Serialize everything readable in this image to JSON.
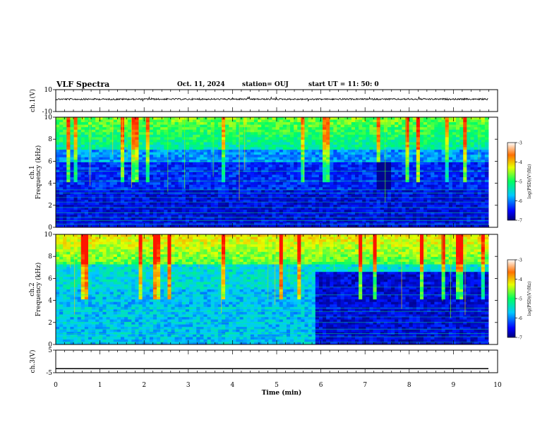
{
  "header": {
    "title": "VLF Spectra",
    "date": "Oct. 11, 2024",
    "station": "station= OUJ",
    "start": "start  UT  =   11: 50: 0"
  },
  "chart_data": [
    {
      "type": "line",
      "panel": "ch1-waveform",
      "ylabel": "ch.1(V)",
      "ylim": [
        -10,
        10
      ],
      "yticks": [
        "10",
        "-10"
      ],
      "xlim": [
        0,
        10
      ],
      "series": [
        {
          "baseline_value": 0
        }
      ]
    },
    {
      "type": "heatmap",
      "panel": "ch1-spectrogram",
      "ylabel": "ch.1 Frequency (kHz)",
      "ylim": [
        0,
        10
      ],
      "yticks": [
        "0",
        "2",
        "4",
        "6",
        "8",
        "10"
      ],
      "xlim": [
        0,
        9.85
      ],
      "colorbar": {
        "ticks": [
          "-3",
          "-4",
          "-5",
          "-6",
          "-7"
        ],
        "label": "log(PSD)(V²/Hz)",
        "range": [
          -7,
          -3
        ]
      }
    },
    {
      "type": "heatmap",
      "panel": "ch2-spectrogram",
      "ylabel": "ch.2 Frequency (kHz)",
      "ylim": [
        0,
        10
      ],
      "yticks": [
        "0",
        "2",
        "4",
        "6",
        "8",
        "10"
      ],
      "xlim": [
        0,
        9.85
      ],
      "colorbar": {
        "ticks": [
          "-3",
          "-4",
          "-5",
          "-6",
          "-7"
        ],
        "label": "log(PSD)(V²/Hz)",
        "range": [
          -7,
          -3
        ]
      }
    },
    {
      "type": "line",
      "panel": "ch3-waveform",
      "ylabel": "ch.3(V)",
      "ylim": [
        -5,
        5
      ],
      "yticks": [
        "5",
        "-5"
      ],
      "xlim": [
        0,
        10
      ],
      "series": [
        {
          "value": -3.2
        }
      ]
    }
  ],
  "xaxis": {
    "label": "Time  (min)",
    "ticks": [
      "0",
      "1",
      "2",
      "3",
      "4",
      "5",
      "6",
      "7",
      "8",
      "9",
      "10"
    ]
  },
  "colors": {
    "frame": "#000000",
    "spectrogram_low": "#00007a",
    "spectrogram_high": "#ff1a00"
  }
}
